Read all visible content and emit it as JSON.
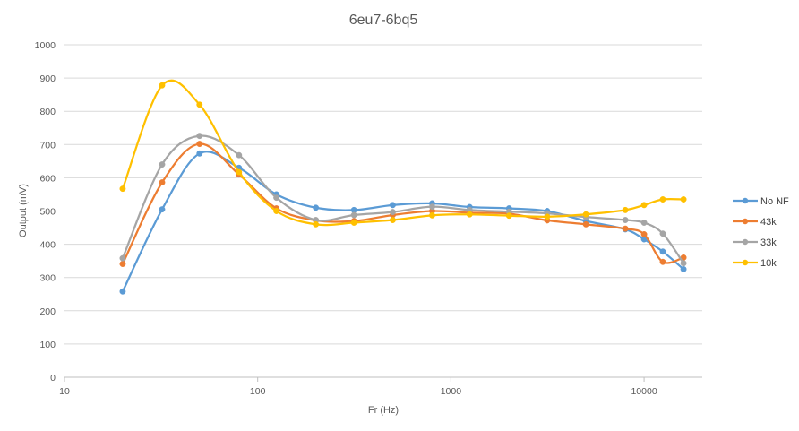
{
  "chart_data": {
    "type": "line",
    "title": "6eu7-6bq5",
    "xlabel": "Fr (Hz)",
    "ylabel": "Output (mV)",
    "x_scale": "log",
    "xlim": [
      10,
      20000
    ],
    "ylim": [
      0,
      1000
    ],
    "x_ticks": [
      10,
      100,
      1000,
      10000
    ],
    "x_tick_labels": [
      "10",
      "100",
      "1000",
      "10000"
    ],
    "y_ticks": [
      0,
      100,
      200,
      300,
      400,
      500,
      600,
      700,
      800,
      900,
      1000
    ],
    "y_tick_labels": [
      "0",
      "100",
      "200",
      "300",
      "400",
      "500",
      "600",
      "700",
      "800",
      "900",
      "1000"
    ],
    "grid": "horizontal",
    "legend_position": "right",
    "x": [
      20,
      32,
      50,
      80,
      125,
      200,
      315,
      500,
      800,
      1250,
      2000,
      3150,
      5000,
      8000,
      10000,
      12500,
      16000
    ],
    "series": [
      {
        "name": "No NF",
        "color": "#5B9BD5",
        "values": [
          258,
          505,
          673,
          630,
          550,
          510,
          503,
          518,
          523,
          512,
          508,
          500,
          470,
          445,
          415,
          378,
          325
        ]
      },
      {
        "name": "43k",
        "color": "#ED7D31",
        "values": [
          341,
          586,
          702,
          610,
          508,
          472,
          470,
          488,
          500,
          495,
          492,
          472,
          460,
          447,
          430,
          347,
          360
        ]
      },
      {
        "name": "33k",
        "color": "#A5A5A5",
        "values": [
          358,
          640,
          726,
          668,
          540,
          473,
          488,
          497,
          513,
          503,
          498,
          493,
          482,
          473,
          465,
          432,
          343
        ]
      },
      {
        "name": "10k",
        "color": "#FFC000",
        "values": [
          567,
          878,
          820,
          617,
          500,
          460,
          465,
          473,
          487,
          490,
          486,
          483,
          490,
          503,
          518,
          535,
          535
        ]
      }
    ]
  }
}
